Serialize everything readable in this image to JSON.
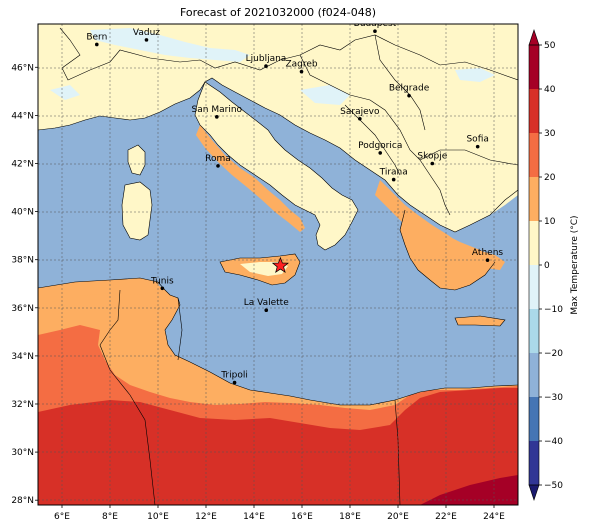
{
  "title": "Forecast of 2021032000 (f024-048)",
  "colorbar": {
    "label": "Max Temperature (°C)",
    "ticks": [
      "50",
      "40",
      "30",
      "20",
      "10",
      "0",
      "−10",
      "−20",
      "−30",
      "−40",
      "−50"
    ],
    "levels": [
      {
        "from": 40,
        "to": 50,
        "color": "#a50026"
      },
      {
        "from": 30,
        "to": 40,
        "color": "#d73027"
      },
      {
        "from": 20,
        "to": 30,
        "color": "#f46d43"
      },
      {
        "from": 10,
        "to": 20,
        "color": "#fdae61"
      },
      {
        "from": 0,
        "to": 10,
        "color": "#fff7c8"
      },
      {
        "from": -10,
        "to": 0,
        "color": "#e0f3f8"
      },
      {
        "from": -20,
        "to": -10,
        "color": "#abd9e9"
      },
      {
        "from": -30,
        "to": -20,
        "color": "#8fb2d8"
      },
      {
        "from": -40,
        "to": -30,
        "color": "#4575b4"
      },
      {
        "from": -50,
        "to": -40,
        "color": "#313695"
      }
    ],
    "extend_top_color": "#a50026",
    "extend_bottom_color": "#1a1a6e"
  },
  "axes": {
    "lon_range": [
      5,
      25
    ],
    "lat_range": [
      27.8,
      47.8
    ],
    "lon_ticks": [
      "6°E",
      "8°E",
      "10°E",
      "12°E",
      "14°E",
      "16°E",
      "18°E",
      "20°E",
      "22°E",
      "24°E"
    ],
    "lat_ticks": [
      "28°N",
      "30°N",
      "32°N",
      "34°N",
      "36°N",
      "38°N",
      "40°N",
      "42°N",
      "44°N",
      "46°N"
    ],
    "grid": true
  },
  "cities": [
    {
      "name": "Bern",
      "lon": 7.45,
      "lat": 46.95
    },
    {
      "name": "Vaduz",
      "lon": 9.52,
      "lat": 47.14
    },
    {
      "name": "Budapest",
      "lon": 19.04,
      "lat": 47.5
    },
    {
      "name": "Ljubljana",
      "lon": 14.5,
      "lat": 46.05
    },
    {
      "name": "Zagreb",
      "lon": 15.98,
      "lat": 45.82
    },
    {
      "name": "Belgrade",
      "lon": 20.46,
      "lat": 44.82
    },
    {
      "name": "San Marino",
      "lon": 12.45,
      "lat": 43.94
    },
    {
      "name": "Sarajevo",
      "lon": 18.41,
      "lat": 43.86
    },
    {
      "name": "Sofia",
      "lon": 23.32,
      "lat": 42.7
    },
    {
      "name": "Podgorica",
      "lon": 19.26,
      "lat": 42.44
    },
    {
      "name": "Skopje",
      "lon": 21.43,
      "lat": 42.0
    },
    {
      "name": "Roma",
      "lon": 12.5,
      "lat": 41.9
    },
    {
      "name": "Tirana",
      "lon": 19.82,
      "lat": 41.33
    },
    {
      "name": "Athens",
      "lon": 23.73,
      "lat": 37.98
    },
    {
      "name": "Tunis",
      "lon": 10.18,
      "lat": 36.81
    },
    {
      "name": "La Valette",
      "lon": 14.51,
      "lat": 35.9
    },
    {
      "name": "Tripoli",
      "lon": 13.19,
      "lat": 32.89
    }
  ],
  "marker": {
    "lon": 15.1,
    "lat": 37.75,
    "color": "#ff2020"
  },
  "colors": {
    "sea": "#8fb2d8",
    "land_10_20": "#fdae61",
    "land_0_10": "#fff7c8",
    "land_m10_0": "#e0f3f8",
    "hot_20_30": "#f46d43",
    "hot_30_40": "#d73027",
    "hot_40_50": "#a50026"
  }
}
